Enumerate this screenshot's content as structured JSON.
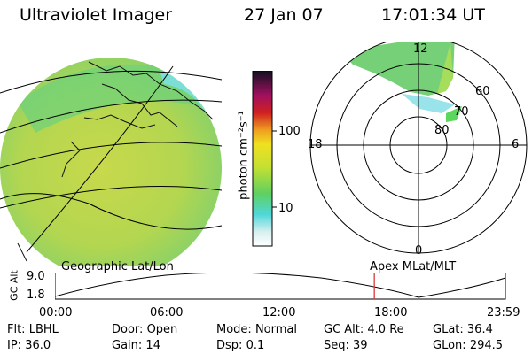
{
  "header": {
    "instrument": "Ultraviolet Imager",
    "date": "27 Jan 07",
    "time": "17:01:34 UT"
  },
  "colorbar": {
    "unit_label": "photon cm⁻²s⁻¹",
    "ticks": [
      "100",
      "10"
    ]
  },
  "polar": {
    "labels": {
      "top": "12",
      "left": "18",
      "right": "6",
      "bottom": "0"
    },
    "lat_labels": [
      "60",
      "70",
      "80"
    ]
  },
  "timeline": {
    "left_label": "Geographic Lat/Lon",
    "right_label": "Apex  MLat/MLT",
    "axis_title": "GC Alt",
    "y_ticks": [
      "9.0",
      "1.8"
    ],
    "x_ticks": [
      "00:00",
      "06:00",
      "12:00",
      "18:00",
      "23:59"
    ],
    "current_time_fraction": 0.709
  },
  "footer": {
    "row1": [
      {
        "key": "Flt:",
        "val": "LBHL"
      },
      {
        "key": "Door:",
        "val": "Open"
      },
      {
        "key": "Mode:",
        "val": "Normal"
      },
      {
        "key": "GC Alt:",
        "val": "4.0 Re"
      },
      {
        "key": "GLat:",
        "val": "36.4"
      }
    ],
    "row2": [
      {
        "key": "IP:",
        "val": "36.0"
      },
      {
        "key": "Gain:",
        "val": "14"
      },
      {
        "key": "Dsp:",
        "val": "0.1"
      },
      {
        "key": "Seq:",
        "val": "39"
      },
      {
        "key": "GLon:",
        "val": "294.5"
      }
    ]
  },
  "colors": {
    "image_main": "#b6d44a",
    "image_green": "#5ecc6a",
    "image_cyan": "#68d8d8",
    "marker": "#d83a3a"
  }
}
